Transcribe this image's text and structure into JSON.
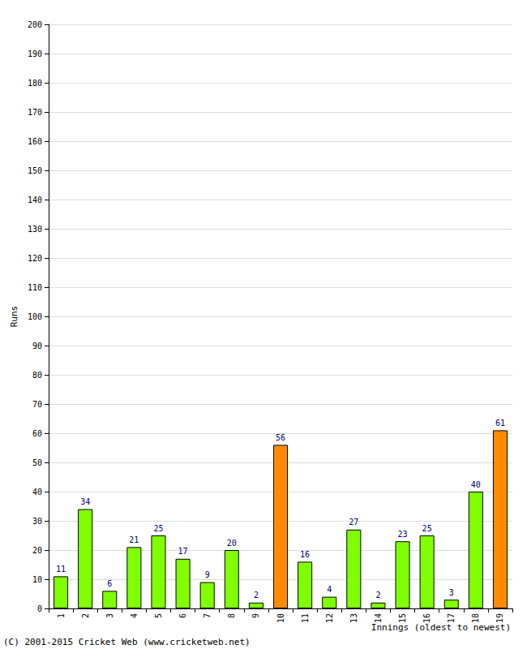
{
  "chart_data": {
    "type": "bar",
    "categories": [
      "1",
      "2",
      "3",
      "4",
      "5",
      "6",
      "7",
      "8",
      "9",
      "10",
      "11",
      "12",
      "13",
      "14",
      "15",
      "16",
      "17",
      "18",
      "19"
    ],
    "values": [
      11,
      34,
      6,
      21,
      25,
      17,
      9,
      20,
      2,
      56,
      16,
      4,
      27,
      2,
      23,
      25,
      3,
      40,
      61
    ],
    "colors": [
      "#80ff00",
      "#80ff00",
      "#80ff00",
      "#80ff00",
      "#80ff00",
      "#80ff00",
      "#80ff00",
      "#80ff00",
      "#80ff00",
      "#ff8c00",
      "#80ff00",
      "#80ff00",
      "#80ff00",
      "#80ff00",
      "#80ff00",
      "#80ff00",
      "#80ff00",
      "#80ff00",
      "#ff8c00"
    ],
    "ylabel": "Runs",
    "xlabel": "Innings (oldest to newest)",
    "annotations": [
      "(C) 2001-2015 Cricket Web (www.cricketweb.net)"
    ],
    "ylim": [
      0,
      200
    ],
    "yticks": [
      0,
      10,
      20,
      30,
      40,
      50,
      60,
      70,
      80,
      90,
      100,
      110,
      120,
      130,
      140,
      150,
      160,
      170,
      180,
      190,
      200
    ],
    "grid": true,
    "data_labels": true
  }
}
